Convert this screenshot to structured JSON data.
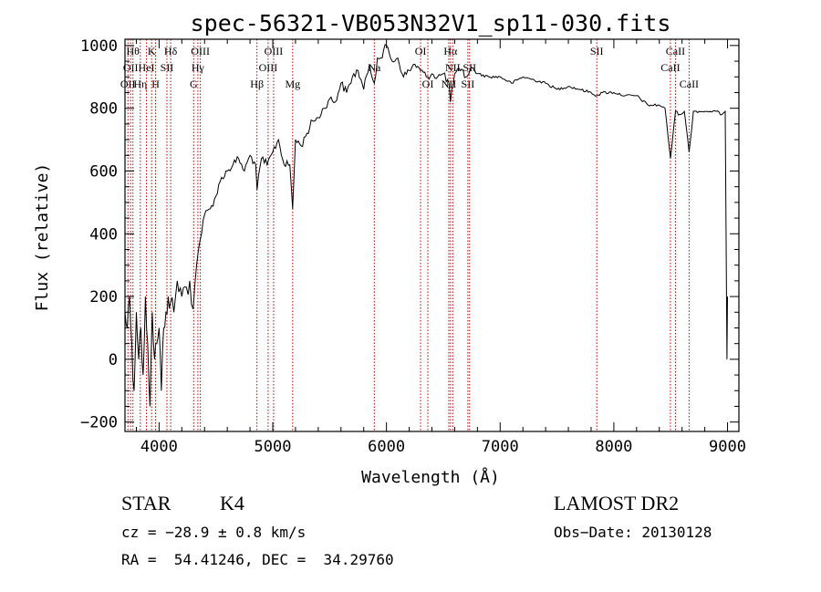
{
  "chart_data": {
    "type": "line",
    "title": "spec-56321-VB053N32V1_sp11-030.fits",
    "xlabel": "Wavelength (Å)",
    "ylabel": "Flux (relative)",
    "xlim": [
      3700,
      9100
    ],
    "ylim": [
      -230,
      1020
    ],
    "xticks": [
      4000,
      5000,
      6000,
      7000,
      8000,
      9000
    ],
    "yticks": [
      -200,
      0,
      200,
      400,
      600,
      800,
      1000
    ],
    "xtick_labels": [
      "4000",
      "5000",
      "6000",
      "7000",
      "8000",
      "9000"
    ],
    "ytick_labels": [
      "−200",
      "0",
      "200",
      "400",
      "600",
      "800",
      "1000"
    ],
    "grid": false,
    "line_color": "#000000",
    "marker_color": "#c00000",
    "series": [
      {
        "x": [
          3700,
          3720,
          3740,
          3760,
          3780,
          3800,
          3820,
          3840,
          3860,
          3880,
          3900,
          3920,
          3940,
          3960,
          3980,
          4000,
          4020,
          4040,
          4060,
          4080,
          4100,
          4130,
          4160,
          4200,
          4240,
          4270,
          4300,
          4330,
          4360,
          4400,
          4450,
          4500,
          4550,
          4600,
          4650,
          4700,
          4750,
          4800,
          4850,
          4862,
          4900,
          4950,
          5000,
          5050,
          5100,
          5150,
          5175,
          5200,
          5250,
          5300,
          5350,
          5400,
          5450,
          5500,
          5550,
          5600,
          5650,
          5700,
          5750,
          5800,
          5850,
          5893,
          5920,
          5950,
          6000,
          6050,
          6100,
          6150,
          6200,
          6250,
          6300,
          6350,
          6400,
          6450,
          6500,
          6550,
          6563,
          6600,
          6650,
          6700,
          6750,
          6800,
          6900,
          7000,
          7100,
          7200,
          7300,
          7400,
          7500,
          7600,
          7700,
          7800,
          7850,
          7900,
          8000,
          8100,
          8200,
          8300,
          8400,
          8450,
          8498,
          8542,
          8580,
          8620,
          8662,
          8700,
          8750,
          8800,
          8850,
          8900,
          8950,
          8980,
          8995,
          9000
        ],
        "y": [
          150,
          100,
          200,
          50,
          -100,
          150,
          0,
          100,
          -50,
          200,
          50,
          -150,
          150,
          0,
          50,
          100,
          -100,
          100,
          150,
          200,
          180,
          150,
          250,
          200,
          230,
          250,
          160,
          300,
          380,
          460,
          480,
          520,
          580,
          600,
          620,
          640,
          600,
          650,
          620,
          540,
          640,
          620,
          660,
          700,
          620,
          620,
          480,
          700,
          680,
          720,
          760,
          770,
          800,
          830,
          820,
          880,
          850,
          900,
          920,
          860,
          940,
          880,
          960,
          960,
          1000,
          950,
          960,
          900,
          920,
          940,
          920,
          900,
          910,
          900,
          910,
          880,
          820,
          910,
          920,
          900,
          930,
          910,
          900,
          900,
          880,
          900,
          890,
          880,
          860,
          870,
          860,
          850,
          840,
          850,
          850,
          840,
          840,
          810,
          810,
          800,
          640,
          790,
          780,
          790,
          660,
          790,
          790,
          790,
          790,
          790,
          780,
          790,
          0,
          200
        ]
      }
    ],
    "line_markers": [
      {
        "x": 3726,
        "label": "OII",
        "row": 2
      },
      {
        "x": 3750,
        "label": "OII",
        "row": 1
      },
      {
        "x": 3770,
        "label": "Hθ",
        "row": 0
      },
      {
        "x": 3835,
        "label": "Hη",
        "row": 2
      },
      {
        "x": 3889,
        "label": "HeI",
        "row": 1
      },
      {
        "x": 3934,
        "label": "K",
        "row": 0
      },
      {
        "x": 3969,
        "label": "H",
        "row": 2
      },
      {
        "x": 4069,
        "label": "SII",
        "row": 1
      },
      {
        "x": 4102,
        "label": "Hδ",
        "row": 0
      },
      {
        "x": 4304,
        "label": "G",
        "row": 2
      },
      {
        "x": 4341,
        "label": "Hγ",
        "row": 1
      },
      {
        "x": 4363,
        "label": "OIII",
        "row": 0
      },
      {
        "x": 4861,
        "label": "Hβ",
        "row": 2
      },
      {
        "x": 4959,
        "label": "OIII",
        "row": 1
      },
      {
        "x": 5007,
        "label": "OIII",
        "row": 0
      },
      {
        "x": 5175,
        "label": "Mg",
        "row": 2
      },
      {
        "x": 5893,
        "label": "Na",
        "row": 1
      },
      {
        "x": 6300,
        "label": "OI",
        "row": 0
      },
      {
        "x": 6364,
        "label": "OI",
        "row": 2
      },
      {
        "x": 6548,
        "label": "NII",
        "row": 2
      },
      {
        "x": 6563,
        "label": "Hα",
        "row": 0
      },
      {
        "x": 6583,
        "label": "NII",
        "row": 1
      },
      {
        "x": 6716,
        "label": "SII",
        "row": 2
      },
      {
        "x": 6731,
        "label": "SII",
        "row": 1
      },
      {
        "x": 7850,
        "label": "SII",
        "row": 0
      },
      {
        "x": 8498,
        "label": "CaII",
        "row": 1
      },
      {
        "x": 8542,
        "label": "CaII",
        "row": 0
      },
      {
        "x": 8662,
        "label": "CaII",
        "row": 2
      }
    ]
  },
  "info": {
    "object_class": "STAR",
    "subclass": "K4",
    "survey": "LAMOST DR2",
    "redshift_line": "cz = −28.9 ± 0.8 km/s",
    "obs_date_line": "Obs−Date: 20130128",
    "coords_line": "RA =  54.41246, DEC =  34.29760"
  }
}
